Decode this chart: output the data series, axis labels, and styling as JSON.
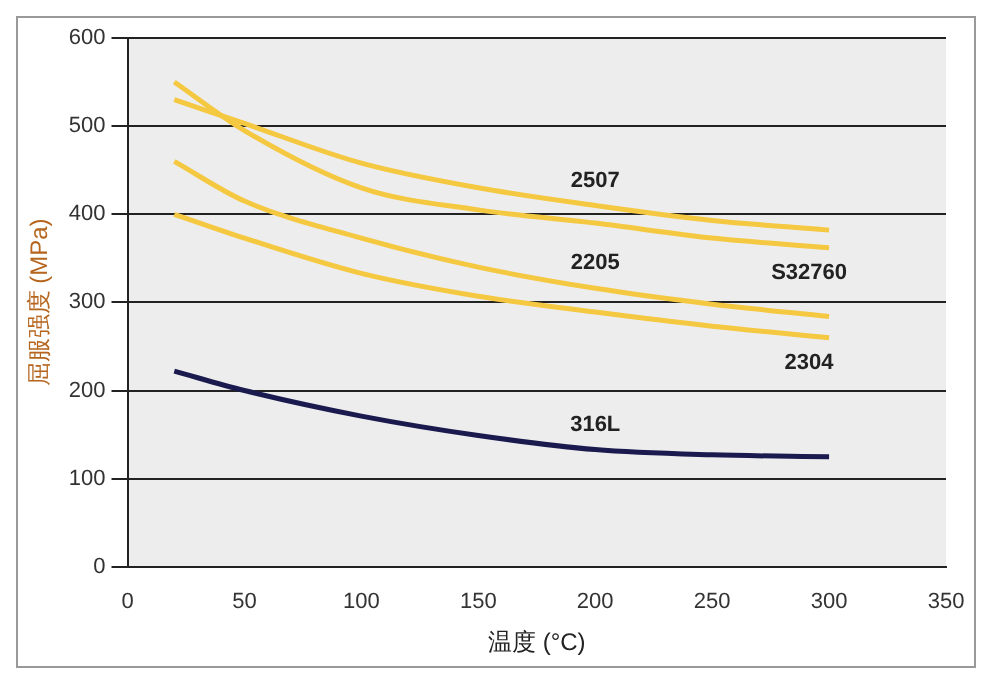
{
  "chart_data": {
    "type": "line",
    "xlabel": "温度 (°C)",
    "ylabel": "屈服强度 (MPa)",
    "x": [
      20,
      50,
      100,
      150,
      200,
      250,
      300
    ],
    "series": [
      {
        "name": "2507",
        "color": "#f5c842",
        "values": [
          530,
          503,
          458,
          430,
          410,
          393,
          382
        ]
      },
      {
        "name": "S32760",
        "color": "#f5c842",
        "values": [
          550,
          495,
          430,
          405,
          390,
          373,
          362
        ]
      },
      {
        "name": "2205",
        "color": "#f5c842",
        "values": [
          460,
          415,
          373,
          340,
          316,
          298,
          284
        ]
      },
      {
        "name": "2304",
        "color": "#f5c842",
        "values": [
          400,
          373,
          333,
          307,
          289,
          273,
          260
        ]
      },
      {
        "name": "316L",
        "color": "#1a1a4e",
        "values": [
          222,
          200,
          171,
          149,
          133,
          127,
          125
        ]
      }
    ],
    "xlim": [
      0,
      350
    ],
    "xticks": [
      0,
      50,
      100,
      150,
      200,
      250,
      300,
      350
    ],
    "ylim": [
      0,
      600
    ],
    "yticks": [
      0,
      100,
      200,
      300,
      400,
      500,
      600
    ],
    "grid": "y",
    "legend": false,
    "marker": "none",
    "line_style": "solid"
  }
}
